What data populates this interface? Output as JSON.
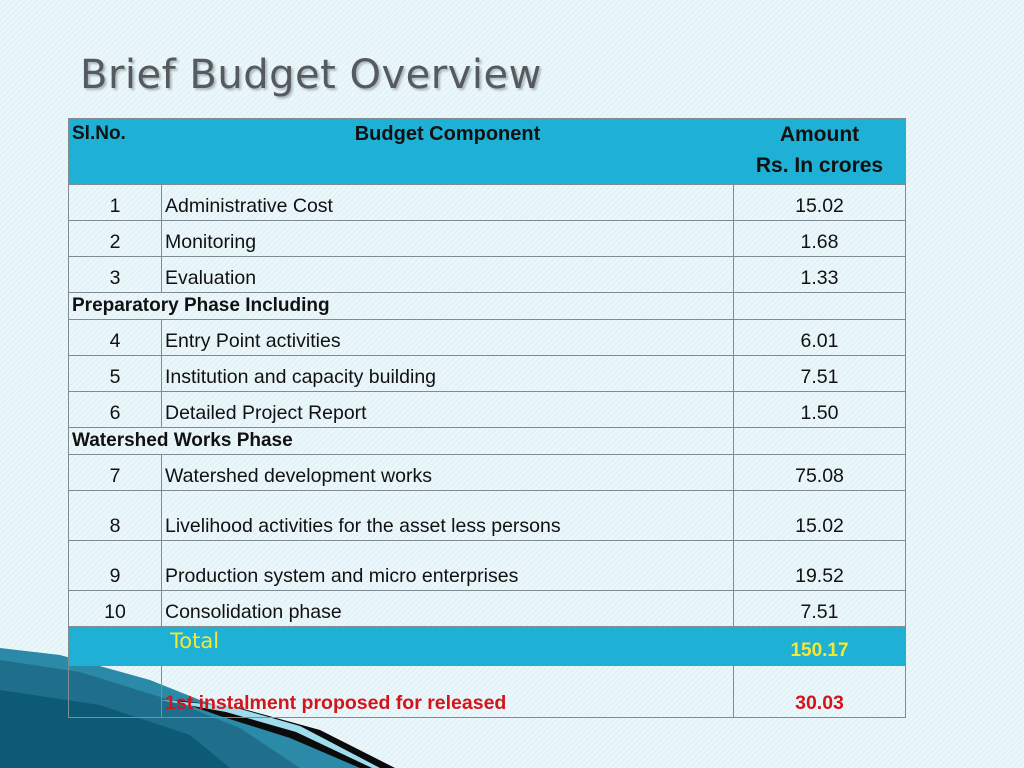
{
  "slide": {
    "title": "Brief Budget Overview"
  },
  "table": {
    "headers": {
      "sl_no": "Sl.No.",
      "component": "Budget Component",
      "amount_line1": "Amount",
      "amount_line2": "Rs. In crores"
    },
    "rows": [
      {
        "type": "item",
        "no": "1",
        "component": "Administrative Cost",
        "amount": "15.02"
      },
      {
        "type": "item",
        "no": "2",
        "component": "Monitoring",
        "amount": "1.68"
      },
      {
        "type": "item",
        "no": "3",
        "component": "Evaluation",
        "amount": "1.33"
      },
      {
        "type": "phase",
        "label": "Preparatory Phase Including"
      },
      {
        "type": "item",
        "no": "4",
        "component": "Entry Point activities",
        "amount": "6.01"
      },
      {
        "type": "item",
        "no": "5",
        "component": "Institution and capacity building",
        "amount": "7.51"
      },
      {
        "type": "item",
        "no": "6",
        "component": "Detailed Project Report",
        "amount": "1.50"
      },
      {
        "type": "phase",
        "label": "Watershed Works Phase"
      },
      {
        "type": "item",
        "no": "7",
        "component": "Watershed development works",
        "amount": "75.08"
      },
      {
        "type": "item",
        "no": "8",
        "component": "Livelihood activities for the asset less persons",
        "amount": "15.02"
      },
      {
        "type": "item",
        "no": "9",
        "component": "Production system and micro enterprises",
        "amount": "19.52"
      },
      {
        "type": "item",
        "no": "10",
        "component": "Consolidation phase",
        "amount": "7.51"
      }
    ],
    "total": {
      "label": "Total",
      "amount": "150.17"
    },
    "instalment": {
      "label": "1st instalment proposed for released",
      "amount": "30.03"
    }
  },
  "colors": {
    "header_bg": "#1fb0d5",
    "total_text": "#f5e832",
    "instalment_text": "#d4141b",
    "title_text": "#555a5e"
  }
}
